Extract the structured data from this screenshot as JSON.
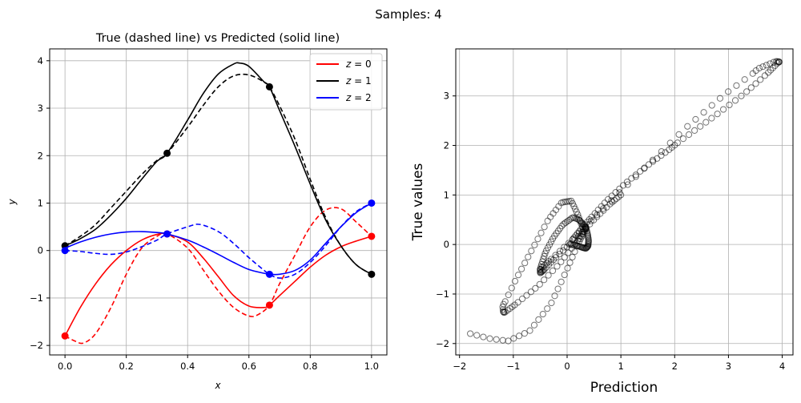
{
  "suptitle": "Samples: 4",
  "chart_data": [
    {
      "type": "line",
      "title": "True (dashed line) vs Predicted (solid line)",
      "xlabel": "x",
      "ylabel": "y",
      "xlim": [
        -0.05,
        1.05
      ],
      "ylim": [
        -2.2,
        4.25
      ],
      "xticks": [
        0.0,
        0.2,
        0.4,
        0.6,
        0.8,
        1.0
      ],
      "xtick_labels": [
        "0.0",
        "0.2",
        "0.4",
        "0.6",
        "0.8",
        "1.0"
      ],
      "yticks": [
        -2,
        -1,
        0,
        1,
        2,
        3,
        4
      ],
      "ytick_labels": [
        "−2",
        "−1",
        "0",
        "1",
        "2",
        "3",
        "4"
      ],
      "grid": true,
      "legend_position": "top-right",
      "legend": [
        {
          "z": "z",
          "eq": " = 0",
          "color": "#ff0000"
        },
        {
          "z": "z",
          "eq": " = 1",
          "color": "#000000"
        },
        {
          "z": "z",
          "eq": " = 2",
          "color": "#0000ff"
        }
      ],
      "series": [
        {
          "name": "z = 0",
          "color": "#ff0000",
          "predicted": {
            "x": [
              0,
              0.05,
              0.1,
              0.15,
              0.2,
              0.25,
              0.3,
              0.333,
              0.4,
              0.45,
              0.5,
              0.55,
              0.6,
              0.65,
              0.667,
              0.7,
              0.75,
              0.8,
              0.85,
              0.9,
              0.95,
              1.0
            ],
            "y": [
              -1.8,
              -1.2,
              -0.7,
              -0.3,
              0.0,
              0.22,
              0.34,
              0.35,
              0.18,
              -0.15,
              -0.55,
              -0.95,
              -1.17,
              -1.2,
              -1.15,
              -0.95,
              -0.65,
              -0.35,
              -0.1,
              0.08,
              0.2,
              0.3
            ]
          },
          "true": {
            "x": [
              0,
              0.03,
              0.06,
              0.1,
              0.15,
              0.2,
              0.25,
              0.3,
              0.333,
              0.4,
              0.45,
              0.5,
              0.55,
              0.6,
              0.63,
              0.667,
              0.7,
              0.75,
              0.8,
              0.85,
              0.9,
              0.95,
              1.0
            ],
            "y": [
              -1.8,
              -1.9,
              -1.95,
              -1.75,
              -1.2,
              -0.5,
              0.05,
              0.3,
              0.35,
              0.05,
              -0.4,
              -0.85,
              -1.2,
              -1.38,
              -1.35,
              -1.15,
              -0.7,
              -0.1,
              0.5,
              0.85,
              0.88,
              0.6,
              0.3
            ]
          },
          "markers": {
            "x": [
              0,
              0.333,
              0.667,
              1.0
            ],
            "y": [
              -1.8,
              0.35,
              -1.15,
              0.3
            ]
          }
        },
        {
          "name": "z = 1",
          "color": "#000000",
          "predicted": {
            "x": [
              0,
              0.05,
              0.1,
              0.15,
              0.2,
              0.25,
              0.3,
              0.333,
              0.4,
              0.45,
              0.5,
              0.55,
              0.57,
              0.6,
              0.65,
              0.667,
              0.7,
              0.75,
              0.8,
              0.85,
              0.9,
              0.95,
              1.0
            ],
            "y": [
              0.1,
              0.25,
              0.45,
              0.75,
              1.1,
              1.5,
              1.88,
              2.05,
              2.75,
              3.3,
              3.72,
              3.93,
              3.95,
              3.88,
              3.55,
              3.45,
              2.95,
              2.2,
              1.4,
              0.65,
              0.1,
              -0.3,
              -0.5
            ]
          },
          "true": {
            "x": [
              0,
              0.05,
              0.1,
              0.15,
              0.2,
              0.25,
              0.3,
              0.333,
              0.4,
              0.45,
              0.5,
              0.55,
              0.6,
              0.65,
              0.667,
              0.7,
              0.75,
              0.8,
              0.85,
              0.9,
              0.95,
              1.0
            ],
            "y": [
              0.1,
              0.3,
              0.55,
              0.9,
              1.25,
              1.6,
              1.9,
              2.05,
              2.6,
              3.05,
              3.45,
              3.68,
              3.7,
              3.55,
              3.45,
              3.05,
              2.35,
              1.5,
              0.7,
              0.1,
              -0.3,
              -0.5
            ]
          },
          "markers": {
            "x": [
              0,
              0.333,
              0.667,
              1.0
            ],
            "y": [
              0.1,
              2.05,
              3.45,
              -0.5
            ]
          }
        },
        {
          "name": "z = 2",
          "color": "#0000ff",
          "predicted": {
            "x": [
              0,
              0.05,
              0.1,
              0.15,
              0.2,
              0.25,
              0.3,
              0.333,
              0.4,
              0.45,
              0.5,
              0.55,
              0.6,
              0.65,
              0.667,
              0.7,
              0.75,
              0.8,
              0.85,
              0.9,
              0.95,
              1.0
            ],
            "y": [
              0.05,
              0.18,
              0.28,
              0.35,
              0.39,
              0.4,
              0.38,
              0.35,
              0.22,
              0.08,
              -0.08,
              -0.25,
              -0.4,
              -0.48,
              -0.5,
              -0.5,
              -0.42,
              -0.2,
              0.15,
              0.5,
              0.8,
              1.0
            ]
          },
          "true": {
            "x": [
              0,
              0.05,
              0.1,
              0.15,
              0.2,
              0.25,
              0.3,
              0.333,
              0.4,
              0.44,
              0.5,
              0.55,
              0.6,
              0.65,
              0.667,
              0.7,
              0.75,
              0.8,
              0.85,
              0.9,
              0.95,
              1.0
            ],
            "y": [
              0.0,
              -0.02,
              -0.06,
              -0.08,
              -0.03,
              0.08,
              0.22,
              0.35,
              0.5,
              0.55,
              0.4,
              0.15,
              -0.15,
              -0.42,
              -0.5,
              -0.58,
              -0.5,
              -0.25,
              0.1,
              0.5,
              0.82,
              1.0
            ]
          },
          "markers": {
            "x": [
              0,
              0.333,
              0.667,
              1.0
            ],
            "y": [
              0.0,
              0.35,
              -0.5,
              1.0
            ]
          }
        }
      ]
    },
    {
      "type": "scatter",
      "title": "",
      "xlabel": "Prediction",
      "ylabel": "True values",
      "xlim": [
        -2.07,
        4.2
      ],
      "ylim": [
        -2.23,
        3.95
      ],
      "xticks": [
        -2,
        -1,
        0,
        1,
        2,
        3,
        4
      ],
      "xtick_labels": [
        "−2",
        "−1",
        "0",
        "1",
        "2",
        "3",
        "4"
      ],
      "yticks": [
        -2,
        -1,
        0,
        1,
        2,
        3
      ],
      "ytick_labels": [
        "−2",
        "−1",
        "0",
        "1",
        "2",
        "3"
      ],
      "grid": true,
      "marker": "hollow-circle",
      "series": [
        {
          "name": "z = 0",
          "pred_key": [
            [
              0,
              -1.8
            ],
            [
              0.333,
              0.35
            ],
            [
              0.667,
              -1.15
            ],
            [
              1.0,
              0.3
            ]
          ],
          "true_key": [
            [
              0,
              -1.8
            ],
            [
              0.06,
              -1.95
            ],
            [
              0.333,
              0.35
            ],
            [
              0.6,
              -1.38
            ],
            [
              0.667,
              -1.15
            ],
            [
              0.9,
              0.88
            ],
            [
              1.0,
              0.3
            ]
          ]
        },
        {
          "name": "z = 1"
        },
        {
          "name": "z = 2"
        }
      ],
      "points_derived_from": "predicted vs true of left chart"
    }
  ]
}
